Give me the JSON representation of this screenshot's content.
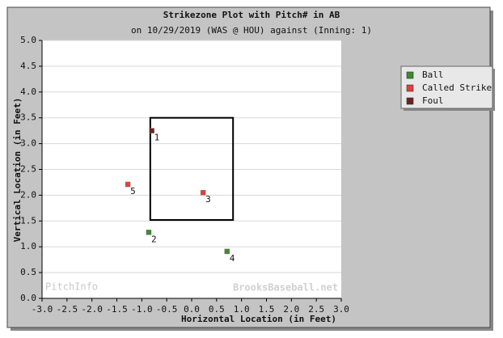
{
  "chart_data": {
    "type": "scatter",
    "title": "Strikezone Plot with Pitch# in AB",
    "subtitle": "on 10/29/2019 (WAS @ HOU) against  (Inning: 1)",
    "x_label": "Horizontal Location (in Feet)",
    "y_label": "Vertical Location (in Feet)",
    "watermarks": [
      "PitchInfo",
      "BrooksBaseball.net"
    ],
    "xlim": [
      -3,
      3
    ],
    "ylim": [
      0,
      5
    ],
    "xticks": [
      {
        "value": -3,
        "label": "-3.0"
      },
      {
        "value": -2.5,
        "label": "-2.5"
      },
      {
        "value": -2,
        "label": "-2.0"
      },
      {
        "value": -1.5,
        "label": "-1.5"
      },
      {
        "value": -1,
        "label": "-1.0"
      },
      {
        "value": -0.5,
        "label": "-0.5"
      },
      {
        "value": 0,
        "label": "0.0"
      },
      {
        "value": 0.5,
        "label": "0.5"
      },
      {
        "value": 1,
        "label": "1.0"
      },
      {
        "value": 1.5,
        "label": "1.5"
      },
      {
        "value": 2,
        "label": "2.0"
      },
      {
        "value": 2.5,
        "label": "2.5"
      },
      {
        "value": 3,
        "label": "3.0"
      }
    ],
    "yticks": [
      {
        "value": 0,
        "label": "0.0"
      },
      {
        "value": 0.5,
        "label": "0.5"
      },
      {
        "value": 1,
        "label": "1.0"
      },
      {
        "value": 1.5,
        "label": "1.5"
      },
      {
        "value": 2,
        "label": "2.0"
      },
      {
        "value": 2.5,
        "label": "2.5"
      },
      {
        "value": 3,
        "label": "3.0"
      },
      {
        "value": 3.5,
        "label": "3.5"
      },
      {
        "value": 4,
        "label": "4.0"
      },
      {
        "value": 4.5,
        "label": "4.5"
      },
      {
        "value": 5,
        "label": "5.0"
      }
    ],
    "grid": "y",
    "legend": "right",
    "strike_zone": {
      "x": [
        -0.83,
        0.83
      ],
      "y": [
        1.52,
        3.5
      ]
    },
    "series": [
      {
        "name": "Ball",
        "color": "#3d8b2e",
        "x": [
          -0.86,
          0.71
        ],
        "values": [
          1.28,
          0.91
        ],
        "labels": [
          "2",
          "4"
        ]
      },
      {
        "name": "Called Strike",
        "color": "#e0403c",
        "x": [
          0.23,
          -1.28
        ],
        "values": [
          2.05,
          2.21
        ],
        "labels": [
          "3",
          "5"
        ]
      },
      {
        "name": "Foul",
        "color": "#6e2220",
        "x": [
          -0.8
        ],
        "values": [
          3.25
        ],
        "labels": [
          "1"
        ]
      }
    ]
  }
}
